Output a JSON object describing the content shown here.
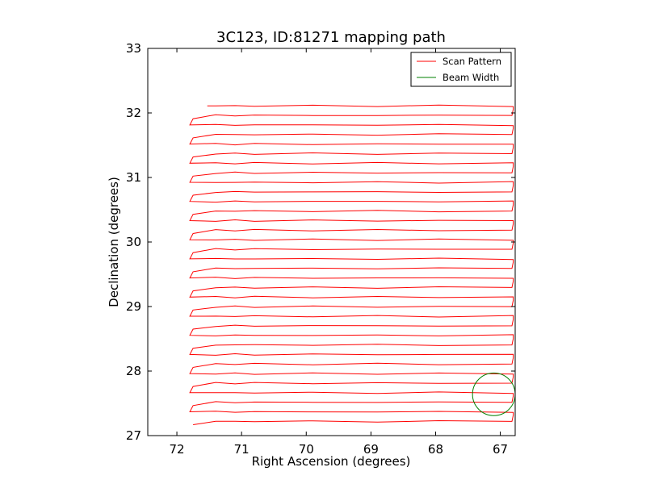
{
  "chart_data": {
    "type": "line",
    "title": "3C123, ID:81271 mapping path",
    "xlabel": "Right Ascension (degrees)",
    "ylabel": "Declination (degrees)",
    "xlim": [
      72.45,
      66.77
    ],
    "ylim": [
      27,
      33
    ],
    "x_inverted": true,
    "xticks": [
      72,
      71,
      70,
      69,
      68,
      67
    ],
    "yticks": [
      27,
      28,
      29,
      30,
      31,
      32,
      33
    ],
    "grid": false,
    "legend_position": "top-right",
    "series": [
      {
        "name": "Scan Pattern",
        "color": "#ff0000",
        "scan_path": {
          "ra_start": 71.53,
          "ra_far_left": 71.8,
          "ra_far_right": 66.8,
          "ra_return_left": 71.75,
          "ra_return_right": 66.82,
          "dec_first": 32.11,
          "dec_last": 27.22,
          "line_count": 34
        }
      },
      {
        "name": "Beam Width",
        "color": "#008000",
        "circle": {
          "center_ra": 67.1,
          "center_dec": 27.64,
          "radius_deg": 0.33
        }
      }
    ]
  }
}
